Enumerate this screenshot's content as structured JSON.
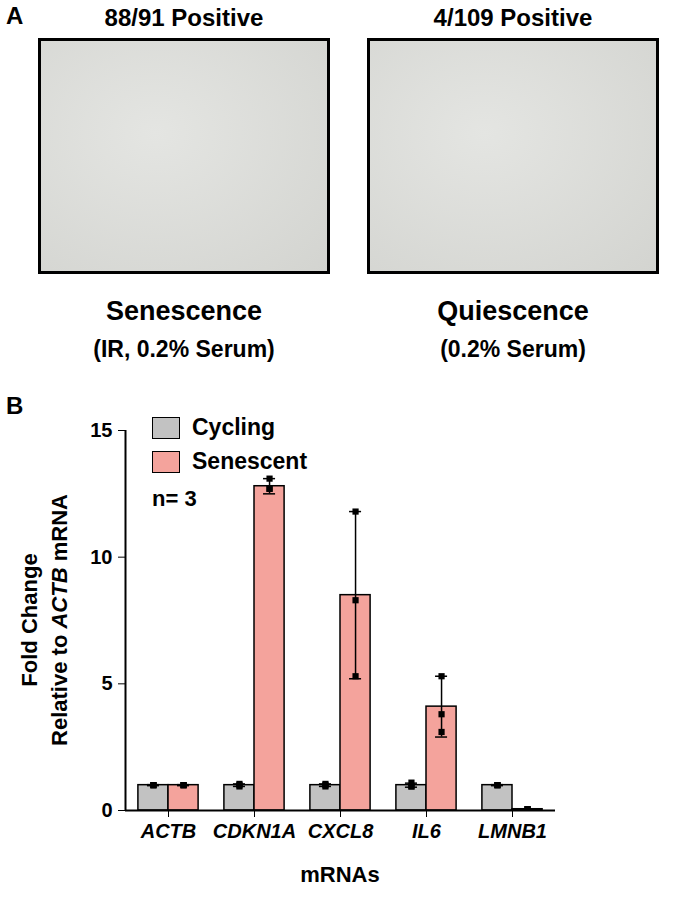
{
  "panel_a": {
    "label": "A",
    "images": [
      {
        "title": "88/91 Positive",
        "caption": "Senescence",
        "subcaption": "(IR, 0.2% Serum)"
      },
      {
        "title": "4/109 Positive",
        "caption": "Quiescence",
        "subcaption": "(0.2% Serum)"
      }
    ]
  },
  "chart_data": {
    "type": "bar",
    "panel_label": "B",
    "categories": [
      "ACTB",
      "CDKN1A",
      "CXCL8",
      "IL6",
      "LMNB1"
    ],
    "series": [
      {
        "name": "Cycling",
        "color": "#c2c2c2",
        "values": [
          1.0,
          1.0,
          1.0,
          1.0,
          1.0
        ],
        "errors": [
          0.02,
          0.05,
          0.05,
          0.08,
          0.02
        ],
        "points": [
          [
            1.0,
            1.0,
            1.0
          ],
          [
            1.05,
            0.95,
            1.0
          ],
          [
            1.05,
            0.95,
            1.0
          ],
          [
            1.1,
            0.95,
            0.95
          ],
          [
            1.0,
            1.0,
            1.0
          ]
        ]
      },
      {
        "name": "Senescent",
        "color": "#f4a39c",
        "values": [
          1.0,
          12.8,
          8.5,
          4.1,
          0.05
        ],
        "errors": [
          0.02,
          0.3,
          3.3,
          1.2,
          0.02
        ],
        "points": [
          [
            1.0,
            1.0,
            1.0
          ],
          [
            13.1,
            12.7,
            12.7
          ],
          [
            11.8,
            8.3,
            5.3
          ],
          [
            5.3,
            3.8,
            3.1
          ],
          [
            0.05,
            0.05,
            0.05
          ]
        ]
      }
    ],
    "x_label": "mRNAs",
    "y_label": "Fold Change\nRelative to ACTB mRNA",
    "annotations": [
      "n= 3"
    ],
    "ylim": [
      0,
      15
    ],
    "yticks": [
      0,
      5,
      10,
      15
    ],
    "legend": "upper left",
    "grid": false
  }
}
